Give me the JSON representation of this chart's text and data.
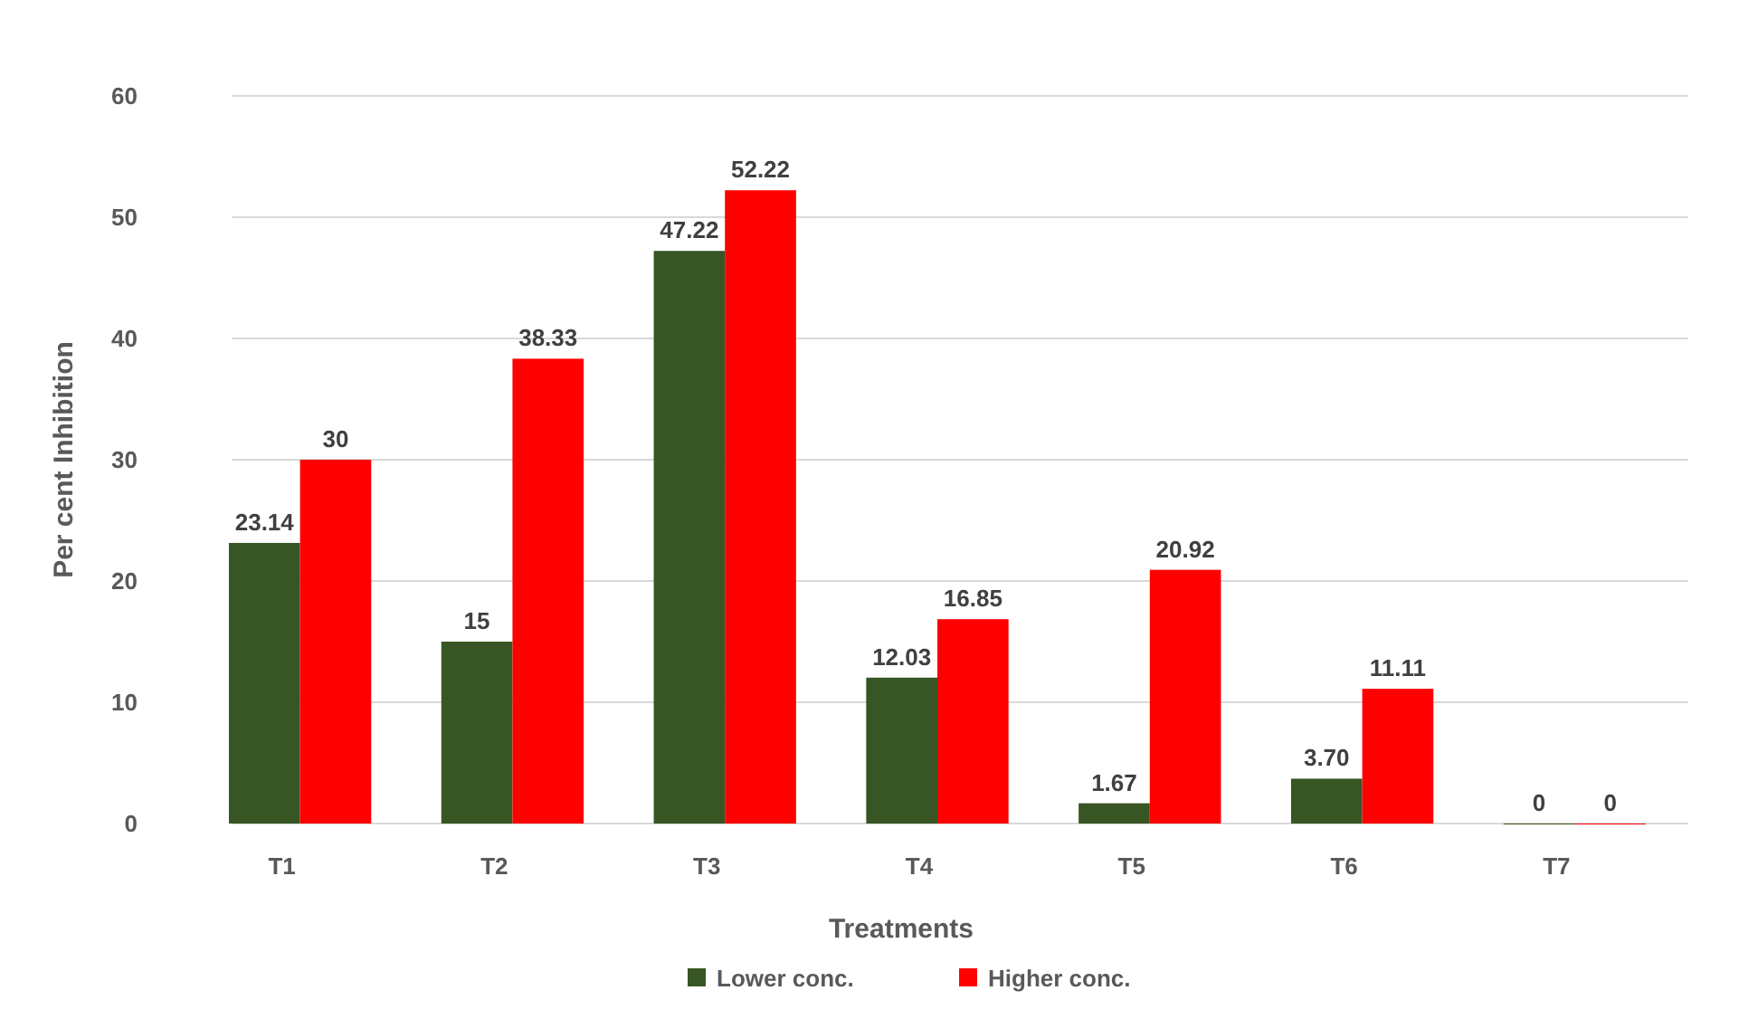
{
  "chart_data": {
    "type": "bar",
    "xlabel": "Treatments",
    "ylabel": "Per cent Inhibition",
    "categories": [
      "T1",
      "T2",
      "T3",
      "T4",
      "T5",
      "T6",
      "T7"
    ],
    "series": [
      {
        "name": "Lower conc.",
        "color": "#375623",
        "values": [
          23.14,
          15,
          47.22,
          12.03,
          1.67,
          3.7,
          0
        ],
        "value_labels": [
          "23.14",
          "15",
          "47.22",
          "12.03",
          "1.67",
          "3.70",
          "0"
        ]
      },
      {
        "name": "Higher conc.",
        "color": "#ff0000",
        "values": [
          30,
          38.33,
          52.22,
          16.85,
          20.92,
          11.11,
          0
        ],
        "value_labels": [
          "30",
          "38.33",
          "52.22",
          "16.85",
          "20.92",
          "11.11",
          "0"
        ]
      }
    ],
    "ylim": [
      0,
      60
    ],
    "yticks": [
      0,
      10,
      20,
      30,
      40,
      50,
      60
    ],
    "grid": "y",
    "legend": "bottom"
  }
}
